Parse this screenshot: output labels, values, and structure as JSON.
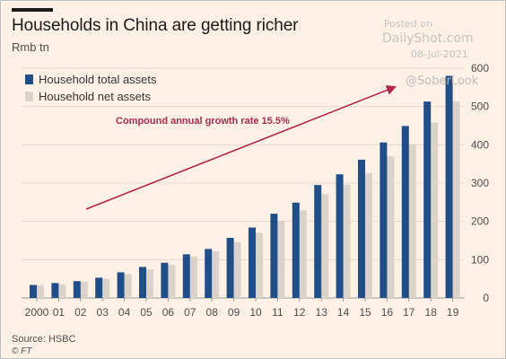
{
  "header": {
    "title": "Households in China are getting richer",
    "subtitle": "Rmb tn"
  },
  "watermark": {
    "posted": "Posted on",
    "site": "DailyShot.com",
    "date": "08-Jul-2021",
    "handle": "@SoberLook"
  },
  "annotation": "Compound annual growth rate 15.5%",
  "footer": {
    "source": "Source: HSBC",
    "logo": "© FT"
  },
  "colors": {
    "background": "#fff1e5",
    "total_assets": "#1f4e89",
    "net_assets": "#dbd3ca",
    "arrow": "#b0284f",
    "grid": "#e6d9ce"
  },
  "chart_data": {
    "type": "bar",
    "title": "Households in China are getting richer",
    "ylabel": "Rmb tn",
    "categories": [
      "2000",
      "01",
      "02",
      "03",
      "04",
      "05",
      "06",
      "07",
      "08",
      "09",
      "10",
      "11",
      "12",
      "13",
      "14",
      "15",
      "16",
      "17",
      "18",
      "19"
    ],
    "series": [
      {
        "name": "Household total assets",
        "values": [
          34,
          39,
          44,
          53,
          67,
          81,
          92,
          114,
          128,
          157,
          184,
          220,
          249,
          295,
          323,
          361,
          406,
          449,
          513,
          580
        ]
      },
      {
        "name": "Household net assets",
        "values": [
          33,
          36,
          42,
          50,
          62,
          75,
          86,
          108,
          122,
          146,
          170,
          202,
          229,
          271,
          296,
          326,
          370,
          402,
          458,
          513
        ]
      }
    ],
    "ylim": [
      0,
      600
    ],
    "yticks": [
      0,
      100,
      200,
      300,
      400,
      500,
      600
    ],
    "y_axis_position": "right",
    "grid": "horizontal",
    "legend": "top-left"
  }
}
